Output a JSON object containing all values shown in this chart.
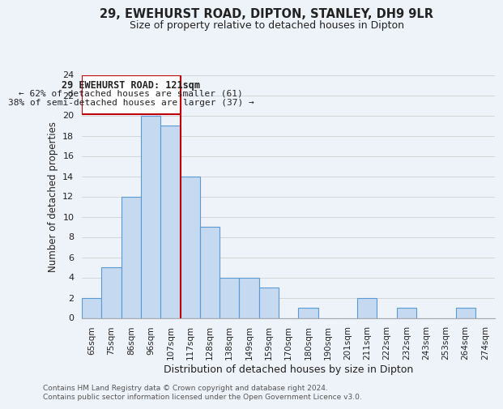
{
  "title_line1": "29, EWEHURST ROAD, DIPTON, STANLEY, DH9 9LR",
  "title_line2": "Size of property relative to detached houses in Dipton",
  "xlabel": "Distribution of detached houses by size in Dipton",
  "ylabel": "Number of detached properties",
  "bin_labels": [
    "65sqm",
    "75sqm",
    "86sqm",
    "96sqm",
    "107sqm",
    "117sqm",
    "128sqm",
    "138sqm",
    "149sqm",
    "159sqm",
    "170sqm",
    "180sqm",
    "190sqm",
    "201sqm",
    "211sqm",
    "222sqm",
    "232sqm",
    "243sqm",
    "253sqm",
    "264sqm",
    "274sqm"
  ],
  "bin_values": [
    2,
    5,
    12,
    20,
    19,
    14,
    9,
    4,
    4,
    3,
    0,
    1,
    0,
    0,
    2,
    0,
    1,
    0,
    0,
    1,
    0
  ],
  "subject_bin_index": 5,
  "subject_label": "29 EWEHURST ROAD: 121sqm",
  "annotation_line1": "← 62% of detached houses are smaller (61)",
  "annotation_line2": "38% of semi-detached houses are larger (37) →",
  "bar_color": "#c5d9f0",
  "bar_edge_color": "#5b9bd5",
  "subject_line_color": "#c00000",
  "annotation_box_edge": "#c00000",
  "grid_color": "#d0d0d0",
  "ylim": [
    0,
    24
  ],
  "yticks": [
    0,
    2,
    4,
    6,
    8,
    10,
    12,
    14,
    16,
    18,
    20,
    22,
    24
  ],
  "footer_line1": "Contains HM Land Registry data © Crown copyright and database right 2024.",
  "footer_line2": "Contains public sector information licensed under the Open Government Licence v3.0.",
  "background_color": "#eef2f9"
}
